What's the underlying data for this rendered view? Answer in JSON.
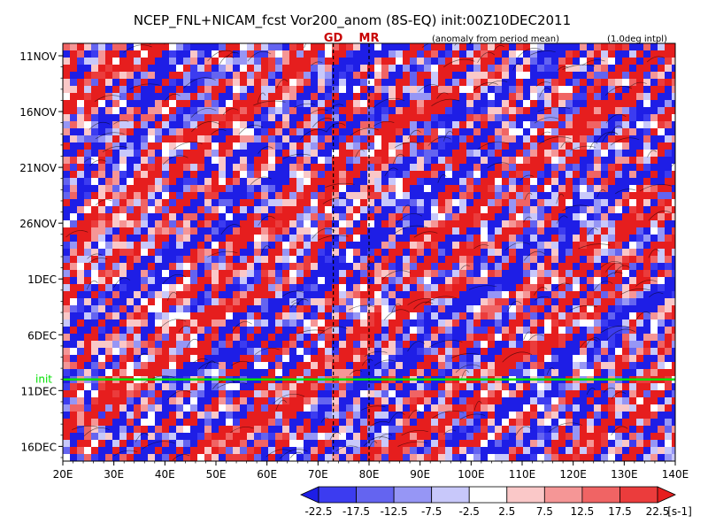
{
  "chart_data": {
    "type": "heatmap",
    "title": "NCEP_FNL+NICAM_fcst Vor200_anom (8S-EQ) init:00Z10DEC2011",
    "note_left": "(anomaly from period mean)",
    "note_right": "(1.0deg intpl)",
    "xlabel": "",
    "ylabel": "",
    "x_ticks": [
      "20E",
      "30E",
      "40E",
      "50E",
      "60E",
      "70E",
      "80E",
      "90E",
      "100E",
      "110E",
      "120E",
      "130E",
      "140E"
    ],
    "x_range": [
      20,
      140
    ],
    "y_ticks": [
      "11NOV",
      "16NOV",
      "21NOV",
      "26NOV",
      "1DEC",
      "6DEC",
      "11DEC",
      "16DEC"
    ],
    "y_range_days": [
      0,
      36
    ],
    "reference_lines": [
      {
        "label": "GD",
        "lon": 73,
        "style": "dashed"
      },
      {
        "label": "MR",
        "lon": 80,
        "style": "dashed"
      }
    ],
    "init_line": {
      "label": "init",
      "day_offset": 29,
      "color": "#00e000"
    },
    "colorbar": {
      "labels": [
        "-22.5",
        "-17.5",
        "-12.5",
        "-7.5",
        "-2.5",
        "2.5",
        "7.5",
        "12.5",
        "17.5",
        "22.5"
      ],
      "unit": "[s-1]",
      "colors": [
        "#1e1ee6",
        "#3c3cf0",
        "#6464f0",
        "#9696f5",
        "#c8c8fa",
        "#ffffff",
        "#fac8c8",
        "#f59696",
        "#f06464",
        "#eb3c3c",
        "#e61e1e"
      ]
    }
  }
}
